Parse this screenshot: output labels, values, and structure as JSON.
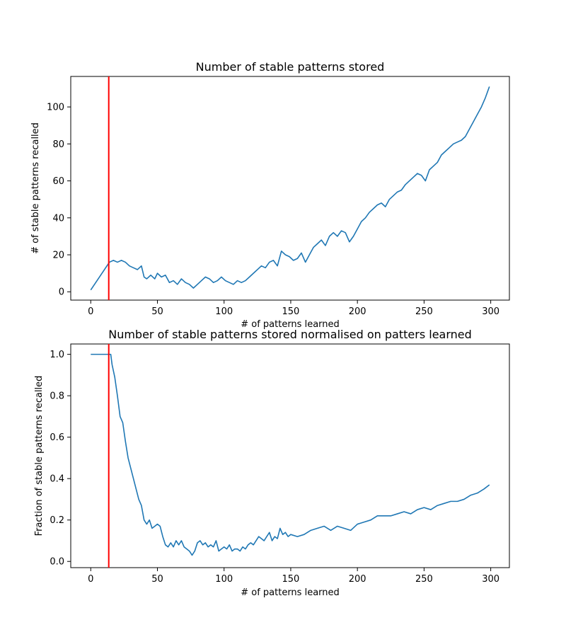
{
  "chart_data": [
    {
      "type": "line",
      "title": "Number of stable patterns stored",
      "xlabel": "# of patterns learned",
      "ylabel": "# of stable patterns recalled",
      "xlim": [
        -15,
        314
      ],
      "ylim": [
        -4.5,
        116.5
      ],
      "xticks": [
        0,
        50,
        100,
        150,
        200,
        250,
        300
      ],
      "yticks": [
        0,
        20,
        40,
        60,
        80,
        100
      ],
      "grid": false,
      "line_color": "#1f77b4",
      "vline": {
        "x": 13.5,
        "color": "#ff0000"
      },
      "series": [
        {
          "points": [
            [
              0,
              1
            ],
            [
              14,
              16
            ],
            [
              17,
              17
            ],
            [
              20,
              16
            ],
            [
              23,
              17
            ],
            [
              26,
              16
            ],
            [
              29,
              14
            ],
            [
              32,
              13
            ],
            [
              35,
              12
            ],
            [
              38,
              14
            ],
            [
              40,
              8
            ],
            [
              42,
              7
            ],
            [
              45,
              9
            ],
            [
              48,
              7
            ],
            [
              50,
              10
            ],
            [
              53,
              8
            ],
            [
              56,
              9
            ],
            [
              59,
              5
            ],
            [
              62,
              6
            ],
            [
              65,
              4
            ],
            [
              68,
              7
            ],
            [
              71,
              5
            ],
            [
              74,
              4
            ],
            [
              77,
              2
            ],
            [
              80,
              4
            ],
            [
              83,
              6
            ],
            [
              86,
              8
            ],
            [
              89,
              7
            ],
            [
              92,
              5
            ],
            [
              95,
              6
            ],
            [
              98,
              8
            ],
            [
              101,
              6
            ],
            [
              104,
              5
            ],
            [
              107,
              4
            ],
            [
              110,
              6
            ],
            [
              113,
              5
            ],
            [
              116,
              6
            ],
            [
              119,
              8
            ],
            [
              122,
              10
            ],
            [
              125,
              12
            ],
            [
              128,
              14
            ],
            [
              131,
              13
            ],
            [
              134,
              16
            ],
            [
              137,
              17
            ],
            [
              140,
              14
            ],
            [
              143,
              22
            ],
            [
              146,
              20
            ],
            [
              149,
              19
            ],
            [
              152,
              17
            ],
            [
              155,
              18
            ],
            [
              158,
              21
            ],
            [
              161,
              16
            ],
            [
              164,
              20
            ],
            [
              167,
              24
            ],
            [
              170,
              26
            ],
            [
              173,
              28
            ],
            [
              176,
              25
            ],
            [
              179,
              30
            ],
            [
              182,
              32
            ],
            [
              185,
              30
            ],
            [
              188,
              33
            ],
            [
              191,
              32
            ],
            [
              194,
              27
            ],
            [
              197,
              30
            ],
            [
              200,
              34
            ],
            [
              203,
              38
            ],
            [
              206,
              40
            ],
            [
              209,
              43
            ],
            [
              212,
              45
            ],
            [
              215,
              47
            ],
            [
              218,
              48
            ],
            [
              221,
              46
            ],
            [
              224,
              50
            ],
            [
              227,
              52
            ],
            [
              230,
              54
            ],
            [
              233,
              55
            ],
            [
              236,
              58
            ],
            [
              239,
              60
            ],
            [
              242,
              62
            ],
            [
              245,
              64
            ],
            [
              248,
              63
            ],
            [
              251,
              60
            ],
            [
              254,
              66
            ],
            [
              257,
              68
            ],
            [
              260,
              70
            ],
            [
              263,
              74
            ],
            [
              266,
              76
            ],
            [
              269,
              78
            ],
            [
              272,
              80
            ],
            [
              275,
              81
            ],
            [
              278,
              82
            ],
            [
              281,
              84
            ],
            [
              284,
              88
            ],
            [
              287,
              92
            ],
            [
              290,
              96
            ],
            [
              293,
              100
            ],
            [
              296,
              105
            ],
            [
              299,
              111
            ]
          ]
        }
      ]
    },
    {
      "type": "line",
      "title": "Number of stable patterns stored normalised on patters learned",
      "xlabel": "# of patterns learned",
      "ylabel": "Fraction of stable patterns recalled",
      "xlim": [
        -15,
        314
      ],
      "ylim": [
        -0.03,
        1.05
      ],
      "xticks": [
        0,
        50,
        100,
        150,
        200,
        250,
        300
      ],
      "yticks": [
        0.0,
        0.2,
        0.4,
        0.6,
        0.8,
        1.0
      ],
      "yticklabels": [
        "0.0",
        "0.2",
        "0.4",
        "0.6",
        "0.8",
        "1.0"
      ],
      "grid": false,
      "line_color": "#1f77b4",
      "vline": {
        "x": 13.5,
        "color": "#ff0000"
      },
      "series": [
        {
          "points": [
            [
              0,
              1.0
            ],
            [
              14,
              1.0
            ],
            [
              15,
              1.0
            ],
            [
              16,
              0.95
            ],
            [
              18,
              0.89
            ],
            [
              20,
              0.8
            ],
            [
              22,
              0.7
            ],
            [
              24,
              0.67
            ],
            [
              26,
              0.58
            ],
            [
              28,
              0.5
            ],
            [
              30,
              0.45
            ],
            [
              32,
              0.4
            ],
            [
              34,
              0.35
            ],
            [
              36,
              0.3
            ],
            [
              38,
              0.27
            ],
            [
              40,
              0.2
            ],
            [
              42,
              0.18
            ],
            [
              44,
              0.2
            ],
            [
              46,
              0.16
            ],
            [
              48,
              0.17
            ],
            [
              50,
              0.18
            ],
            [
              52,
              0.17
            ],
            [
              54,
              0.12
            ],
            [
              56,
              0.08
            ],
            [
              58,
              0.07
            ],
            [
              60,
              0.09
            ],
            [
              62,
              0.07
            ],
            [
              64,
              0.1
            ],
            [
              66,
              0.08
            ],
            [
              68,
              0.1
            ],
            [
              70,
              0.07
            ],
            [
              72,
              0.06
            ],
            [
              74,
              0.05
            ],
            [
              76,
              0.03
            ],
            [
              78,
              0.05
            ],
            [
              80,
              0.09
            ],
            [
              82,
              0.1
            ],
            [
              84,
              0.08
            ],
            [
              86,
              0.09
            ],
            [
              88,
              0.07
            ],
            [
              90,
              0.08
            ],
            [
              92,
              0.07
            ],
            [
              94,
              0.1
            ],
            [
              96,
              0.05
            ],
            [
              98,
              0.06
            ],
            [
              100,
              0.07
            ],
            [
              102,
              0.06
            ],
            [
              104,
              0.08
            ],
            [
              106,
              0.05
            ],
            [
              108,
              0.06
            ],
            [
              110,
              0.06
            ],
            [
              112,
              0.05
            ],
            [
              114,
              0.07
            ],
            [
              116,
              0.06
            ],
            [
              118,
              0.08
            ],
            [
              120,
              0.09
            ],
            [
              122,
              0.08
            ],
            [
              124,
              0.1
            ],
            [
              126,
              0.12
            ],
            [
              128,
              0.11
            ],
            [
              130,
              0.1
            ],
            [
              132,
              0.12
            ],
            [
              134,
              0.14
            ],
            [
              136,
              0.1
            ],
            [
              138,
              0.12
            ],
            [
              140,
              0.11
            ],
            [
              142,
              0.16
            ],
            [
              144,
              0.13
            ],
            [
              146,
              0.14
            ],
            [
              148,
              0.12
            ],
            [
              150,
              0.13
            ],
            [
              155,
              0.12
            ],
            [
              160,
              0.13
            ],
            [
              165,
              0.15
            ],
            [
              170,
              0.16
            ],
            [
              175,
              0.17
            ],
            [
              180,
              0.15
            ],
            [
              185,
              0.17
            ],
            [
              190,
              0.16
            ],
            [
              195,
              0.15
            ],
            [
              200,
              0.18
            ],
            [
              205,
              0.19
            ],
            [
              210,
              0.2
            ],
            [
              215,
              0.22
            ],
            [
              220,
              0.22
            ],
            [
              225,
              0.22
            ],
            [
              230,
              0.23
            ],
            [
              235,
              0.24
            ],
            [
              240,
              0.23
            ],
            [
              245,
              0.25
            ],
            [
              250,
              0.26
            ],
            [
              255,
              0.25
            ],
            [
              260,
              0.27
            ],
            [
              265,
              0.28
            ],
            [
              270,
              0.29
            ],
            [
              275,
              0.29
            ],
            [
              280,
              0.3
            ],
            [
              285,
              0.32
            ],
            [
              290,
              0.33
            ],
            [
              295,
              0.35
            ],
            [
              299,
              0.37
            ]
          ]
        }
      ]
    }
  ]
}
